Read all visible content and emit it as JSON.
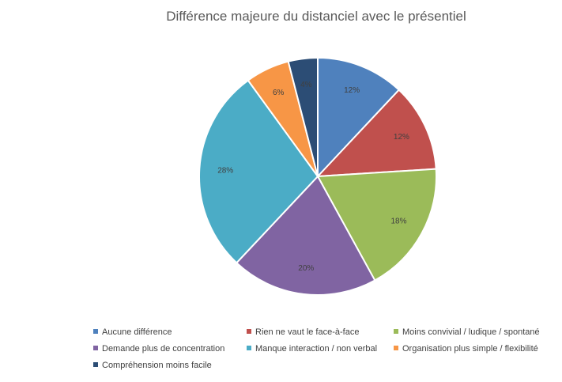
{
  "chart_data": {
    "type": "pie",
    "title": "Différence majeure du distanciel avec le présentiel",
    "slices": [
      {
        "label": "Aucune différence",
        "value": 12,
        "display": "12%",
        "color": "#4F81BD"
      },
      {
        "label": "Rien ne vaut le face-à-face",
        "value": 12,
        "display": "12%",
        "color": "#C0504D"
      },
      {
        "label": "Moins convivial / ludique / spontané",
        "value": 18,
        "display": "18%",
        "color": "#9BBB59"
      },
      {
        "label": "Demande plus de concentration",
        "value": 20,
        "display": "20%",
        "color": "#8064A2"
      },
      {
        "label": "Manque interaction / non verbal",
        "value": 28,
        "display": "28%",
        "color": "#4BACC6"
      },
      {
        "label": "Organisation plus simple / flexibilité",
        "value": 6,
        "display": "6%",
        "color": "#F79646"
      },
      {
        "label": "Compréhension moins facile",
        "value": 4,
        "display": "4%",
        "color": "#2C4D75"
      }
    ],
    "legend_position": "bottom"
  }
}
